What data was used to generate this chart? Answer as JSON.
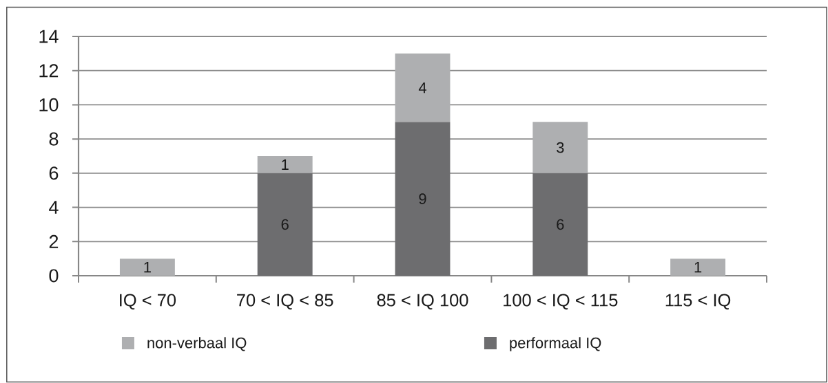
{
  "chart_data": {
    "type": "bar",
    "stacked": true,
    "categories": [
      "IQ < 70",
      "70 < IQ < 85",
      "85 < IQ 100",
      "100 < IQ < 115",
      "115 < IQ"
    ],
    "series": [
      {
        "name": "performaal IQ",
        "color": "#6d6d6f",
        "values": [
          null,
          6,
          9,
          6,
          null
        ]
      },
      {
        "name": "non-verbaal IQ",
        "color": "#aeafb1",
        "values": [
          1,
          1,
          4,
          3,
          1
        ]
      }
    ],
    "ylim": [
      0,
      14
    ],
    "yticks": [
      0,
      2,
      4,
      6,
      8,
      10,
      12,
      14
    ],
    "grid": "y",
    "legend": "bottom",
    "data_labels": true
  }
}
